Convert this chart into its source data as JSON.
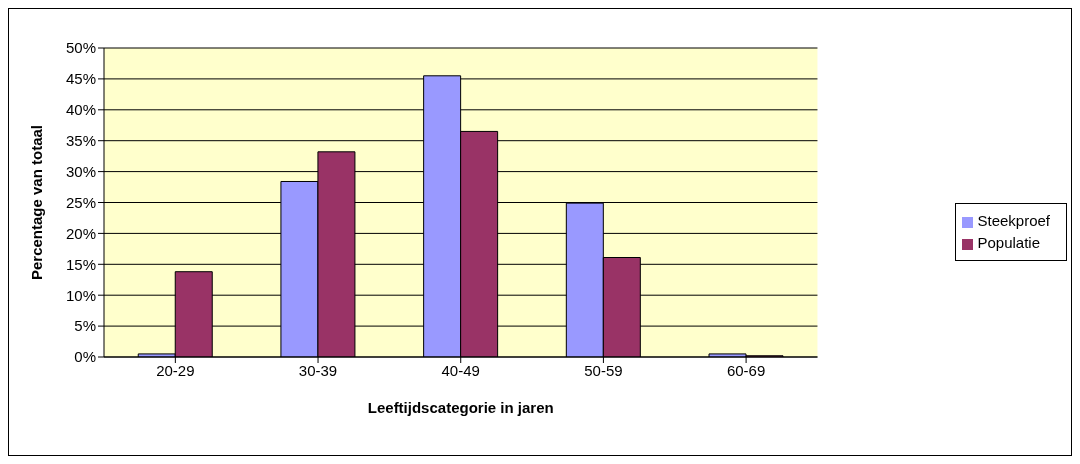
{
  "chart_data": {
    "type": "bar",
    "xlabel": "Leeftijdscategorie in jaren",
    "ylabel": "Percentage van totaal",
    "categories": [
      "20-29",
      "30-39",
      "40-49",
      "50-59",
      "60-69"
    ],
    "series": [
      {
        "name": "Steekproef",
        "color": "#9999ff",
        "values": [
          0.5,
          28.4,
          45.5,
          24.9,
          0.5
        ]
      },
      {
        "name": "Populatie",
        "color": "#993366",
        "values": [
          13.8,
          33.2,
          36.5,
          16.1,
          0.2
        ]
      }
    ],
    "ylim": [
      0,
      50
    ],
    "yticks": [
      {
        "value": 0,
        "label": "0%"
      },
      {
        "value": 5,
        "label": "5%"
      },
      {
        "value": 10,
        "label": "10%"
      },
      {
        "value": 15,
        "label": "15%"
      },
      {
        "value": 20,
        "label": "20%"
      },
      {
        "value": 25,
        "label": "25%"
      },
      {
        "value": 30,
        "label": "30%"
      },
      {
        "value": 35,
        "label": "35%"
      },
      {
        "value": 40,
        "label": "40%"
      },
      {
        "value": 45,
        "label": "45%"
      },
      {
        "value": 50,
        "label": "50%"
      }
    ],
    "grid": "y",
    "legend": "right"
  }
}
